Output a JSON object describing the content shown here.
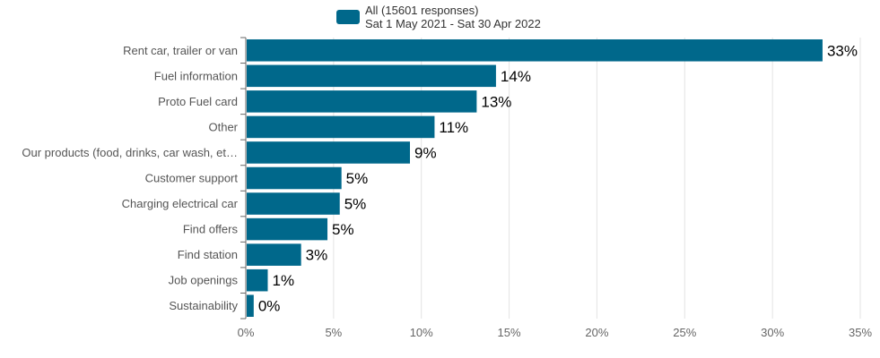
{
  "legend": {
    "line1": "All (15601 responses)",
    "line2": "Sat 1 May 2021 - Sat 30 Apr 2022",
    "color": "#00688b"
  },
  "chart_data": {
    "type": "bar",
    "orientation": "horizontal",
    "categories": [
      "Rent car, trailer or van",
      "Fuel information",
      "Proto Fuel card",
      "Other",
      "Our products (food, drinks, car wash, et…",
      "Customer support",
      "Charging electrical car",
      "Find offers",
      "Find station",
      "Job openings",
      "Sustainability"
    ],
    "series": [
      {
        "name": "All (15601 responses)",
        "values": [
          32.8,
          14.2,
          13.1,
          10.7,
          9.3,
          5.4,
          5.3,
          4.6,
          3.1,
          1.2,
          0.4
        ],
        "labels": [
          "33%",
          "14%",
          "13%",
          "11%",
          "9%",
          "5%",
          "5%",
          "5%",
          "3%",
          "1%",
          "0%"
        ]
      }
    ],
    "xlim": [
      0,
      35
    ],
    "xticks": [
      "0%",
      "5%",
      "10%",
      "15%",
      "20%",
      "25%",
      "30%",
      "35%"
    ],
    "grid": true,
    "legend_position": "top",
    "bar_color": "#00688b"
  }
}
